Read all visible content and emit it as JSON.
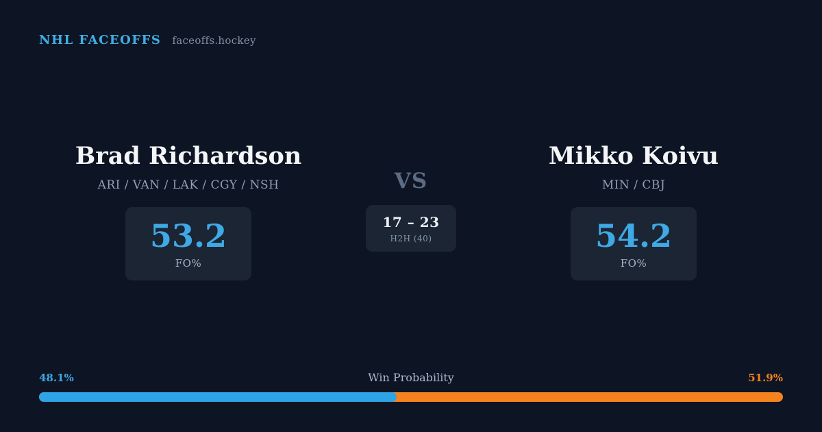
{
  "header": {
    "brand": "NHL FACEOFFS",
    "site": "faceoffs.hockey"
  },
  "players": {
    "left": {
      "name": "Brad Richardson",
      "teams": "ARI / VAN / LAK / CGY / NSH",
      "fo_pct": "53.2",
      "fo_label": "FO%"
    },
    "right": {
      "name": "Mikko Koivu",
      "teams": "MIN / CBJ",
      "fo_pct": "54.2",
      "fo_label": "FO%"
    }
  },
  "matchup": {
    "vs_label": "VS",
    "h2h_score": "17 – 23",
    "h2h_label": "H2H (40)"
  },
  "win_probability": {
    "title": "Win Probability",
    "left_pct_label": "48.1%",
    "right_pct_label": "51.9%",
    "left_value": 48.1,
    "right_value": 51.9
  },
  "colors": {
    "background": "#0d1524",
    "card": "#1b2533",
    "accent_blue": "#3fa9e5",
    "accent_orange": "#f5821f",
    "text_primary": "#f3f5f7",
    "text_muted": "#93a0b4"
  }
}
